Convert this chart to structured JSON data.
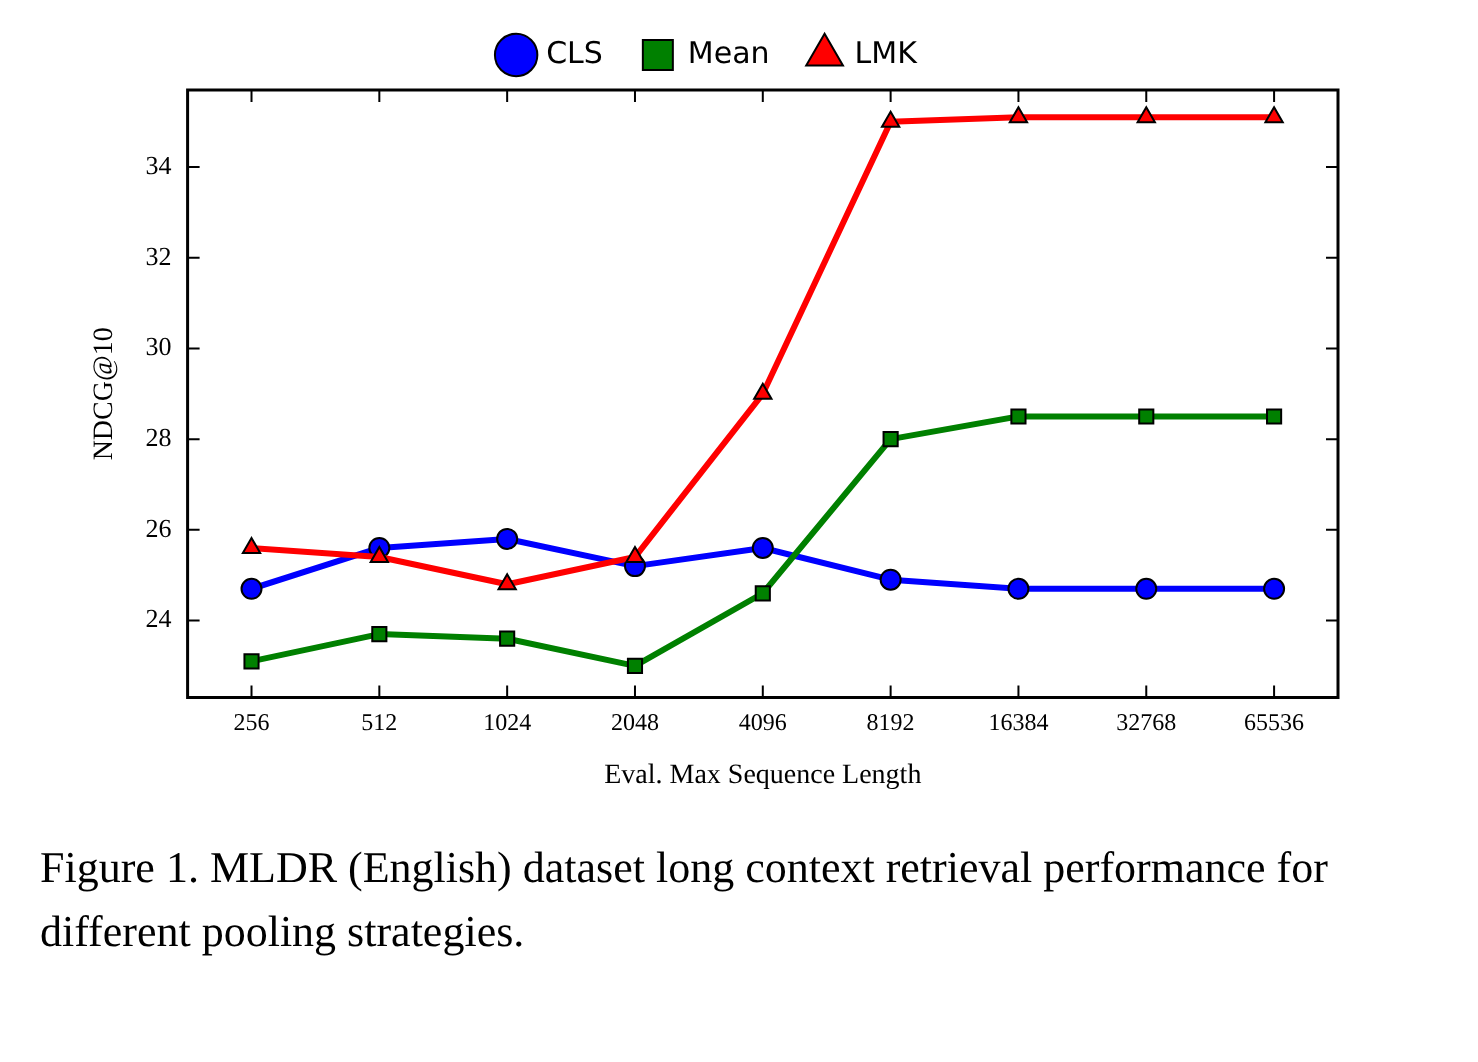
{
  "chart_data": {
    "type": "line",
    "xlabel": "Eval. Max Sequence Length",
    "ylabel": "NDCG@10",
    "categories": [
      "256",
      "512",
      "1024",
      "2048",
      "4096",
      "8192",
      "16384",
      "32768",
      "65536"
    ],
    "series": [
      {
        "name": "CLS",
        "color": "#0000ff",
        "marker": "circle",
        "values": [
          24.7,
          25.6,
          25.8,
          25.2,
          25.6,
          24.9,
          24.7,
          24.7,
          24.7
        ]
      },
      {
        "name": "Mean",
        "color": "#008000",
        "marker": "square",
        "values": [
          23.1,
          23.7,
          23.6,
          23.0,
          24.6,
          28.0,
          28.5,
          28.5,
          28.5
        ]
      },
      {
        "name": "LMK",
        "color": "#ff0000",
        "marker": "triangle",
        "values": [
          25.6,
          25.4,
          24.8,
          25.4,
          29.0,
          35.0,
          35.1,
          35.1,
          35.1
        ]
      }
    ],
    "ylim": [
      22.3,
      35.7
    ],
    "yticks": [
      24,
      26,
      28,
      30,
      32,
      34
    ],
    "grid": false,
    "legend": "top",
    "annotations": [
      "Figure 1. MLDR (English) dataset long context retrieval performance for different pooling strategies."
    ]
  }
}
